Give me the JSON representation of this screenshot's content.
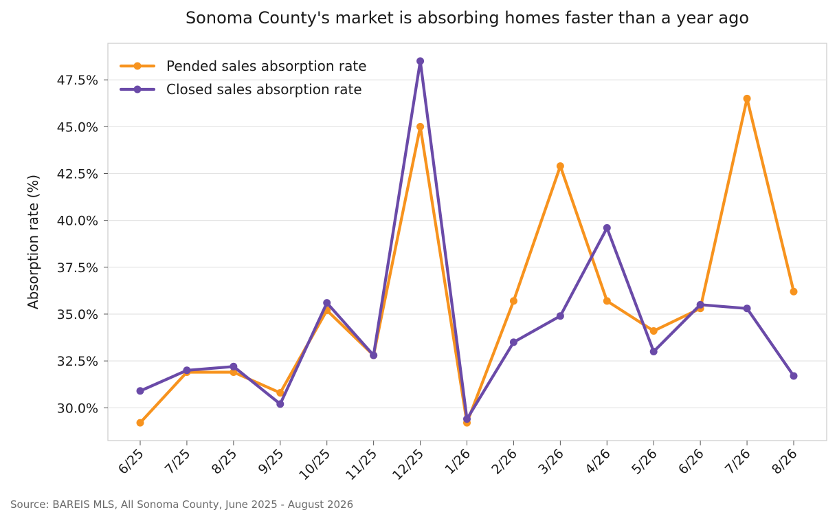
{
  "chart_data": {
    "type": "line",
    "title": "Sonoma County's market is absorbing homes faster than a year ago",
    "ylabel": "Absorption rate (%)",
    "xlabel": "",
    "categories": [
      "6/25",
      "7/25",
      "8/25",
      "9/25",
      "10/25",
      "11/25",
      "12/25",
      "1/26",
      "2/26",
      "3/26",
      "4/26",
      "5/26",
      "6/26",
      "7/26",
      "8/26"
    ],
    "ylim": [
      28.25,
      49.45
    ],
    "yticks": [
      30.0,
      32.5,
      35.0,
      37.5,
      40.0,
      42.5,
      45.0,
      47.5
    ],
    "ytick_labels": [
      "30.0%",
      "32.5%",
      "35.0%",
      "37.5%",
      "40.0%",
      "42.5%",
      "45.0%",
      "47.5%"
    ],
    "grid": "horizontal",
    "legend_position": "top-left",
    "series": [
      {
        "name": "Pended sales absorption rate",
        "color": "#f7931e",
        "values": [
          29.2,
          31.9,
          31.9,
          30.8,
          35.2,
          32.8,
          45.0,
          29.2,
          35.7,
          42.9,
          35.7,
          34.1,
          35.3,
          46.5,
          36.2
        ]
      },
      {
        "name": "Closed sales absorption rate",
        "color": "#6a4aa8",
        "values": [
          30.9,
          32.0,
          32.2,
          30.2,
          35.6,
          32.8,
          48.5,
          29.4,
          33.5,
          34.9,
          39.6,
          33.0,
          35.5,
          35.3,
          31.7
        ]
      }
    ]
  },
  "source": "Source: BAREIS MLS, All Sonoma County, June 2025 - August 2026"
}
